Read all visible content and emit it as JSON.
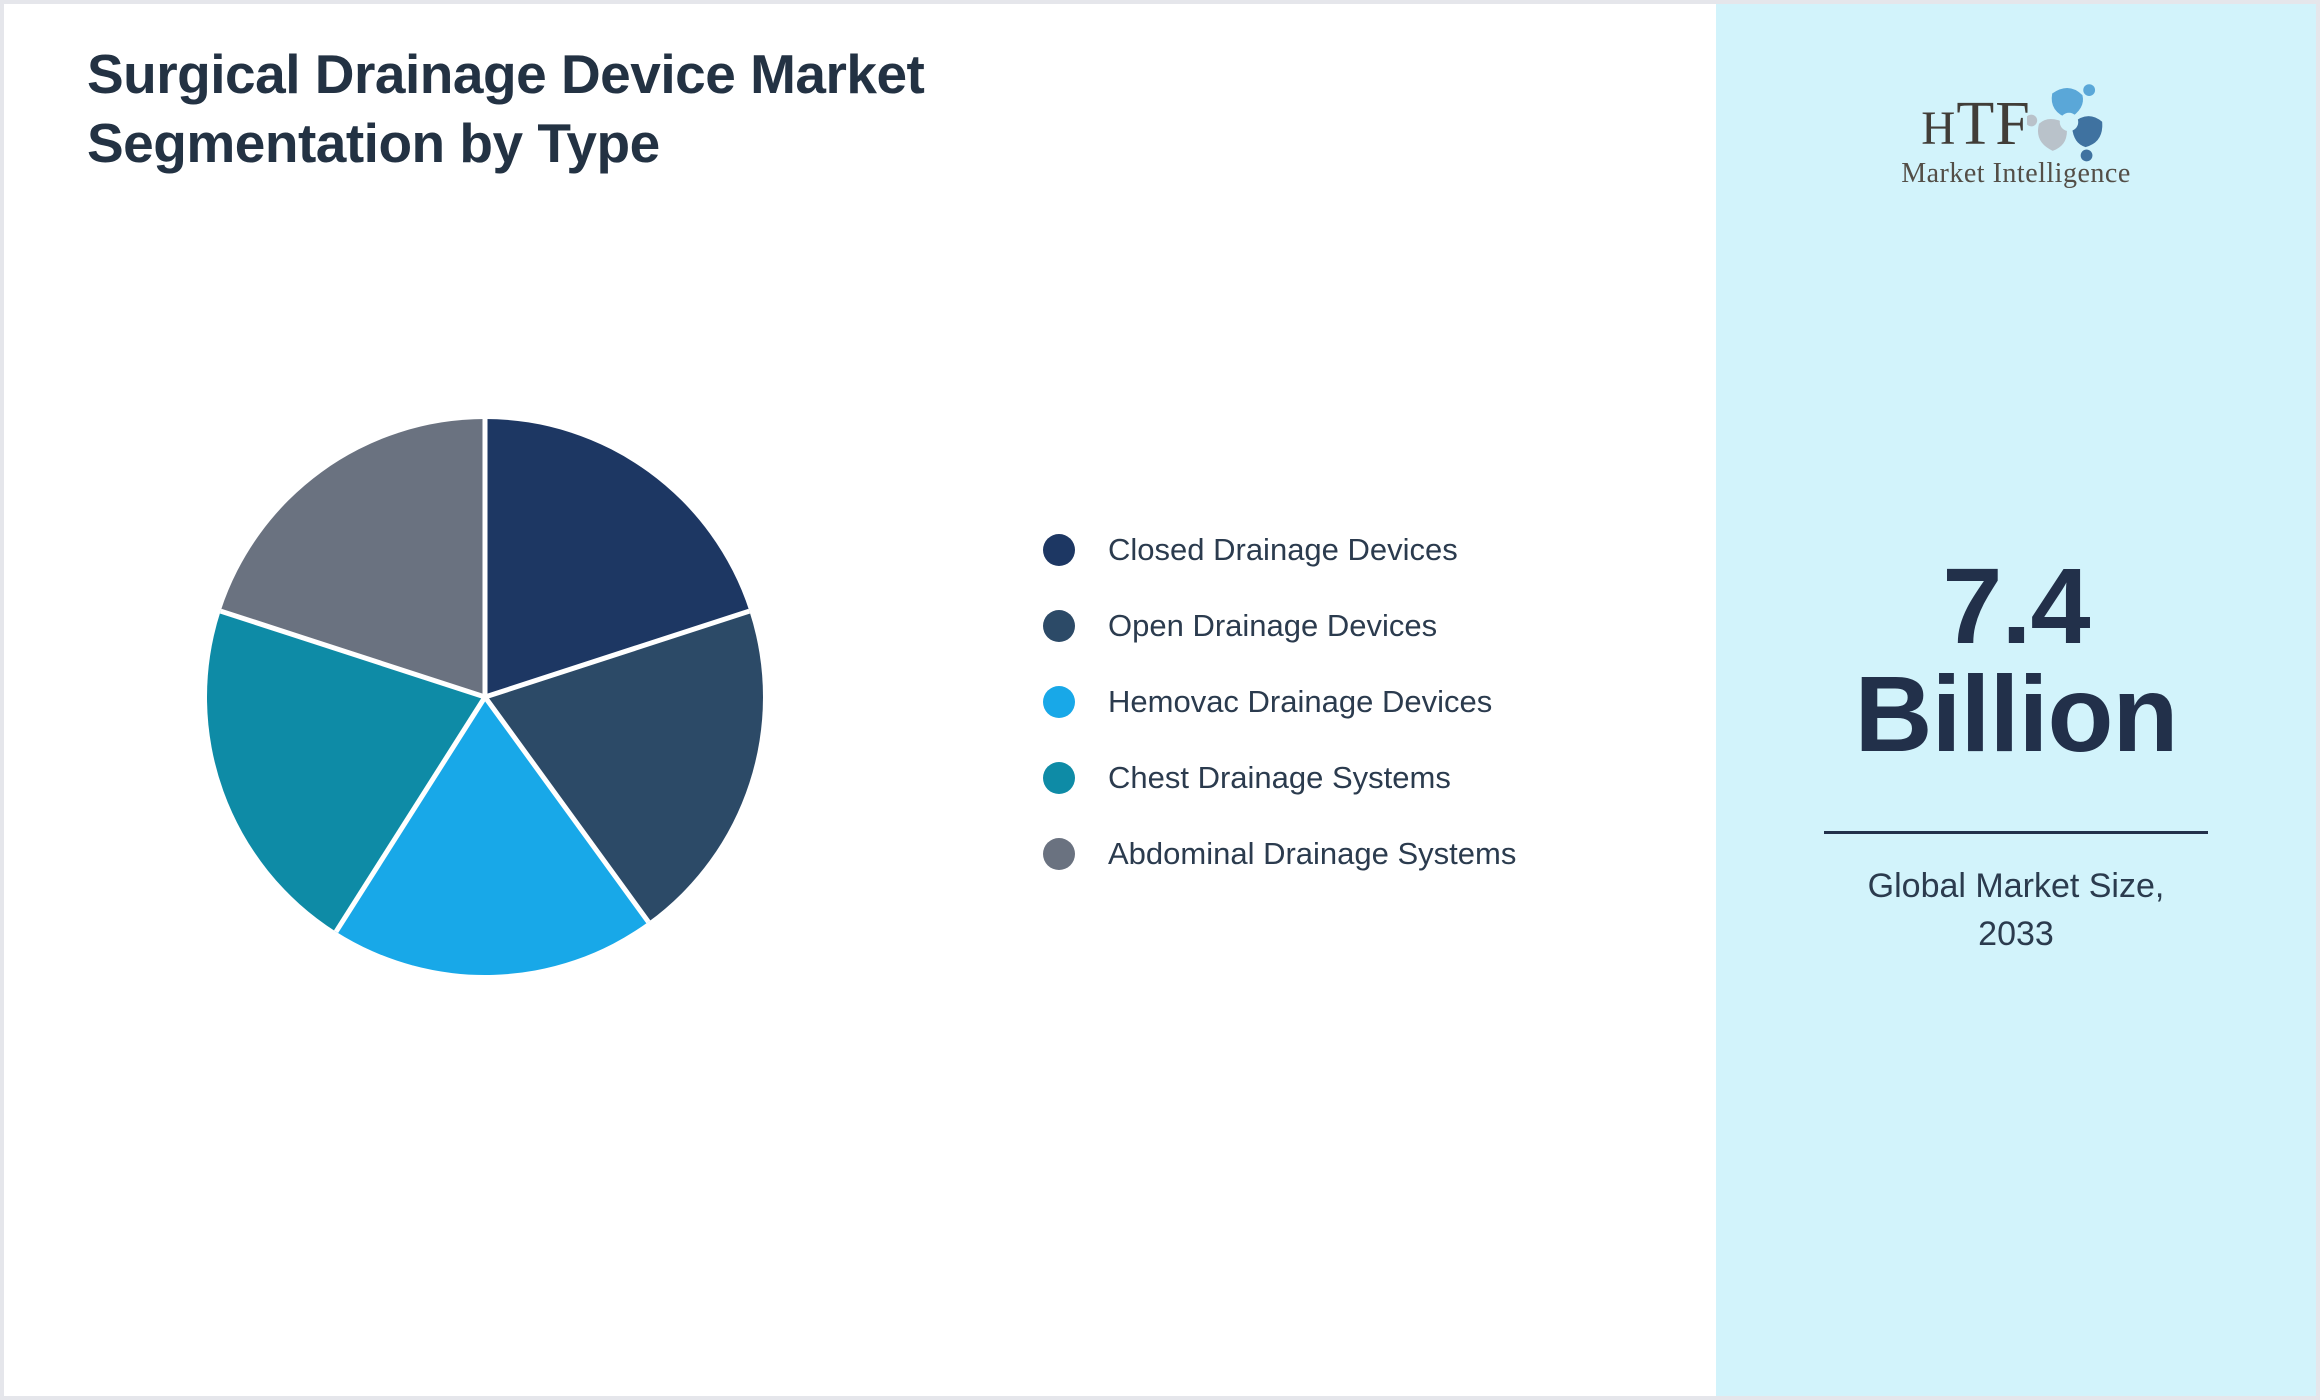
{
  "title": {
    "full": "Surgical Drainage Device Market Segmentation by Type",
    "lines": [
      "Surgical Drainage Device Market",
      "Segmentation by Type"
    ]
  },
  "chart_data": {
    "type": "pie",
    "title": "Surgical Drainage Device Market Segmentation by Type",
    "labels": [
      "Closed Drainage Devices",
      "Open Drainage Devices",
      "Hemovac Drainage Devices",
      "Chest Drainage Systems",
      "Abdominal Drainage Systems"
    ],
    "values": [
      20,
      20,
      19,
      21,
      20
    ],
    "value_note": "percent shares estimated from slice angles; no numeric labels shown in chart",
    "colors": [
      "#1d3763",
      "#2c4a67",
      "#18a8e8",
      "#0e8ba6",
      "#6a7280"
    ],
    "start_angle_deg": 0,
    "direction": "clockwise",
    "slice_separator_color": "#ffffff",
    "legend_position": "right",
    "data_labels_shown": false
  },
  "sidebar": {
    "background_color": "#d2f3fb",
    "logo": {
      "text": "HTF",
      "subtext": "Market Intelligence",
      "swirl_colors": [
        "#5aa7d8",
        "#b9c2ca",
        "#3f72a0"
      ]
    },
    "market_size": {
      "value": "7.4",
      "unit": "Billion",
      "caption": "Global Market Size, 2033"
    }
  },
  "colors": {
    "page_border": "#e5e6eb",
    "heading_text": "#233243",
    "legend_text": "#2b3b4e",
    "metric_text": "#22304a"
  }
}
